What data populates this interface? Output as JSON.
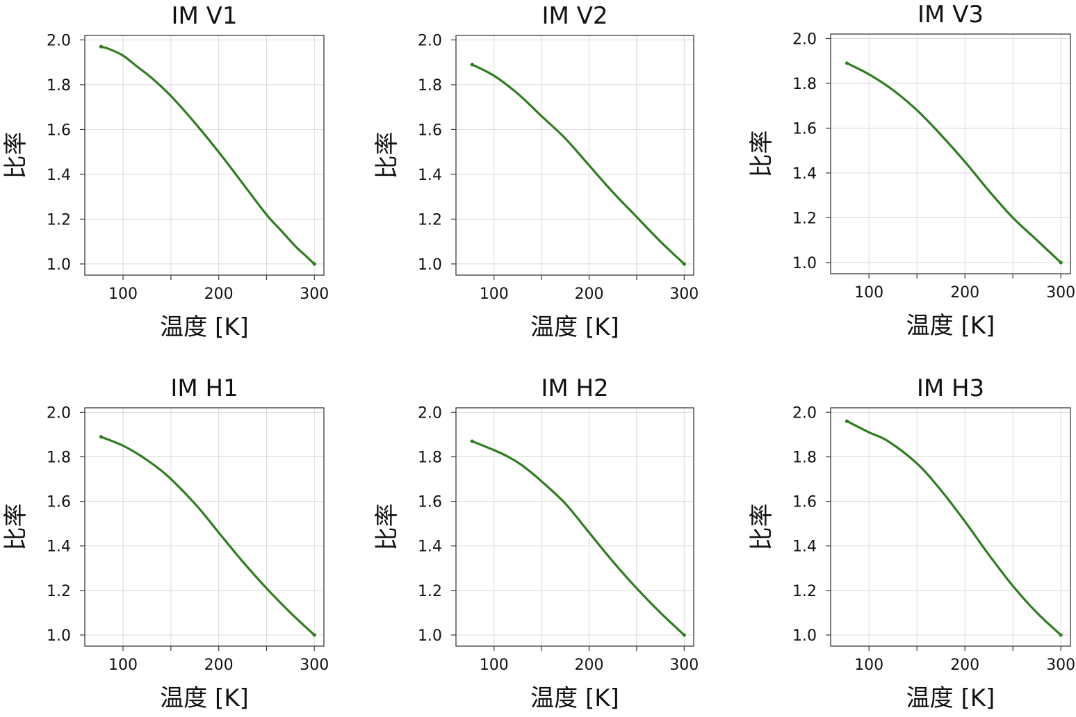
{
  "figure": {
    "line_color": "#2e7d1f",
    "grid": true
  },
  "chart_data": [
    {
      "type": "line",
      "title": "IM V1",
      "xlabel": "温度 [K]",
      "ylabel": "比率",
      "xlim": [
        60,
        310
      ],
      "ylim": [
        0.95,
        2.02
      ],
      "xticks": [
        100,
        200,
        300
      ],
      "yticks": [
        1.0,
        1.2,
        1.4,
        1.6,
        1.8,
        2.0
      ],
      "ytick_labels": [
        "1.0",
        "1.2",
        "1.4",
        "1.6",
        "1.8",
        "2.0"
      ],
      "x": [
        77,
        85,
        100,
        115,
        130,
        150,
        175,
        200,
        225,
        250,
        265,
        280,
        290,
        300
      ],
      "y": [
        1.97,
        1.96,
        1.93,
        1.88,
        1.83,
        1.75,
        1.63,
        1.5,
        1.36,
        1.22,
        1.15,
        1.08,
        1.04,
        1.0
      ]
    },
    {
      "type": "line",
      "title": "IM V2",
      "xlabel": "温度 [K]",
      "ylabel": "比率",
      "xlim": [
        60,
        310
      ],
      "ylim": [
        0.95,
        2.02
      ],
      "xticks": [
        100,
        200,
        300
      ],
      "yticks": [
        1.0,
        1.2,
        1.4,
        1.6,
        1.8,
        2.0
      ],
      "ytick_labels": [
        "1.0",
        "1.2",
        "1.4",
        "1.6",
        "1.8",
        "2.0"
      ],
      "x": [
        77,
        100,
        125,
        150,
        175,
        200,
        225,
        250,
        275,
        300
      ],
      "y": [
        1.89,
        1.84,
        1.76,
        1.66,
        1.56,
        1.44,
        1.32,
        1.21,
        1.1,
        1.0
      ]
    },
    {
      "type": "line",
      "title": "IM V3",
      "xlabel": "温度 [K]",
      "ylabel": "比率",
      "xlim": [
        60,
        310
      ],
      "ylim": [
        0.95,
        2.02
      ],
      "xticks": [
        100,
        200,
        300
      ],
      "yticks": [
        1.0,
        1.2,
        1.4,
        1.6,
        1.8,
        2.0
      ],
      "ytick_labels": [
        "1.0",
        "1.2",
        "1.4",
        "1.6",
        "1.8",
        "2.0"
      ],
      "x": [
        77,
        100,
        125,
        150,
        175,
        200,
        225,
        250,
        275,
        300
      ],
      "y": [
        1.89,
        1.84,
        1.77,
        1.68,
        1.57,
        1.45,
        1.32,
        1.2,
        1.1,
        1.0
      ]
    },
    {
      "type": "line",
      "title": "IM H1",
      "xlabel": "温度 [K]",
      "ylabel": "比率",
      "xlim": [
        60,
        310
      ],
      "ylim": [
        0.95,
        2.02
      ],
      "xticks": [
        100,
        200,
        300
      ],
      "yticks": [
        1.0,
        1.2,
        1.4,
        1.6,
        1.8,
        2.0
      ],
      "ytick_labels": [
        "1.0",
        "1.2",
        "1.4",
        "1.6",
        "1.8",
        "2.0"
      ],
      "x": [
        77,
        100,
        120,
        145,
        175,
        200,
        225,
        250,
        275,
        300
      ],
      "y": [
        1.89,
        1.85,
        1.8,
        1.72,
        1.59,
        1.46,
        1.33,
        1.21,
        1.1,
        1.0
      ]
    },
    {
      "type": "line",
      "title": "IM H2",
      "xlabel": "温度 [K]",
      "ylabel": "比率",
      "xlim": [
        60,
        310
      ],
      "ylim": [
        0.95,
        2.02
      ],
      "xticks": [
        100,
        200,
        300
      ],
      "yticks": [
        1.0,
        1.2,
        1.4,
        1.6,
        1.8,
        2.0
      ],
      "ytick_labels": [
        "1.0",
        "1.2",
        "1.4",
        "1.6",
        "1.8",
        "2.0"
      ],
      "x": [
        77,
        100,
        115,
        130,
        150,
        175,
        200,
        225,
        250,
        275,
        300
      ],
      "y": [
        1.87,
        1.83,
        1.8,
        1.76,
        1.69,
        1.59,
        1.46,
        1.33,
        1.21,
        1.1,
        1.0
      ]
    },
    {
      "type": "line",
      "title": "IM H3",
      "xlabel": "温度 [K]",
      "ylabel": "比率",
      "xlim": [
        60,
        310
      ],
      "ylim": [
        0.95,
        2.02
      ],
      "xticks": [
        100,
        200,
        300
      ],
      "yticks": [
        1.0,
        1.2,
        1.4,
        1.6,
        1.8,
        2.0
      ],
      "ytick_labels": [
        "1.0",
        "1.2",
        "1.4",
        "1.6",
        "1.8",
        "2.0"
      ],
      "x": [
        77,
        100,
        120,
        150,
        175,
        200,
        225,
        250,
        275,
        300
      ],
      "y": [
        1.96,
        1.91,
        1.87,
        1.77,
        1.65,
        1.51,
        1.36,
        1.22,
        1.1,
        1.0
      ]
    }
  ]
}
